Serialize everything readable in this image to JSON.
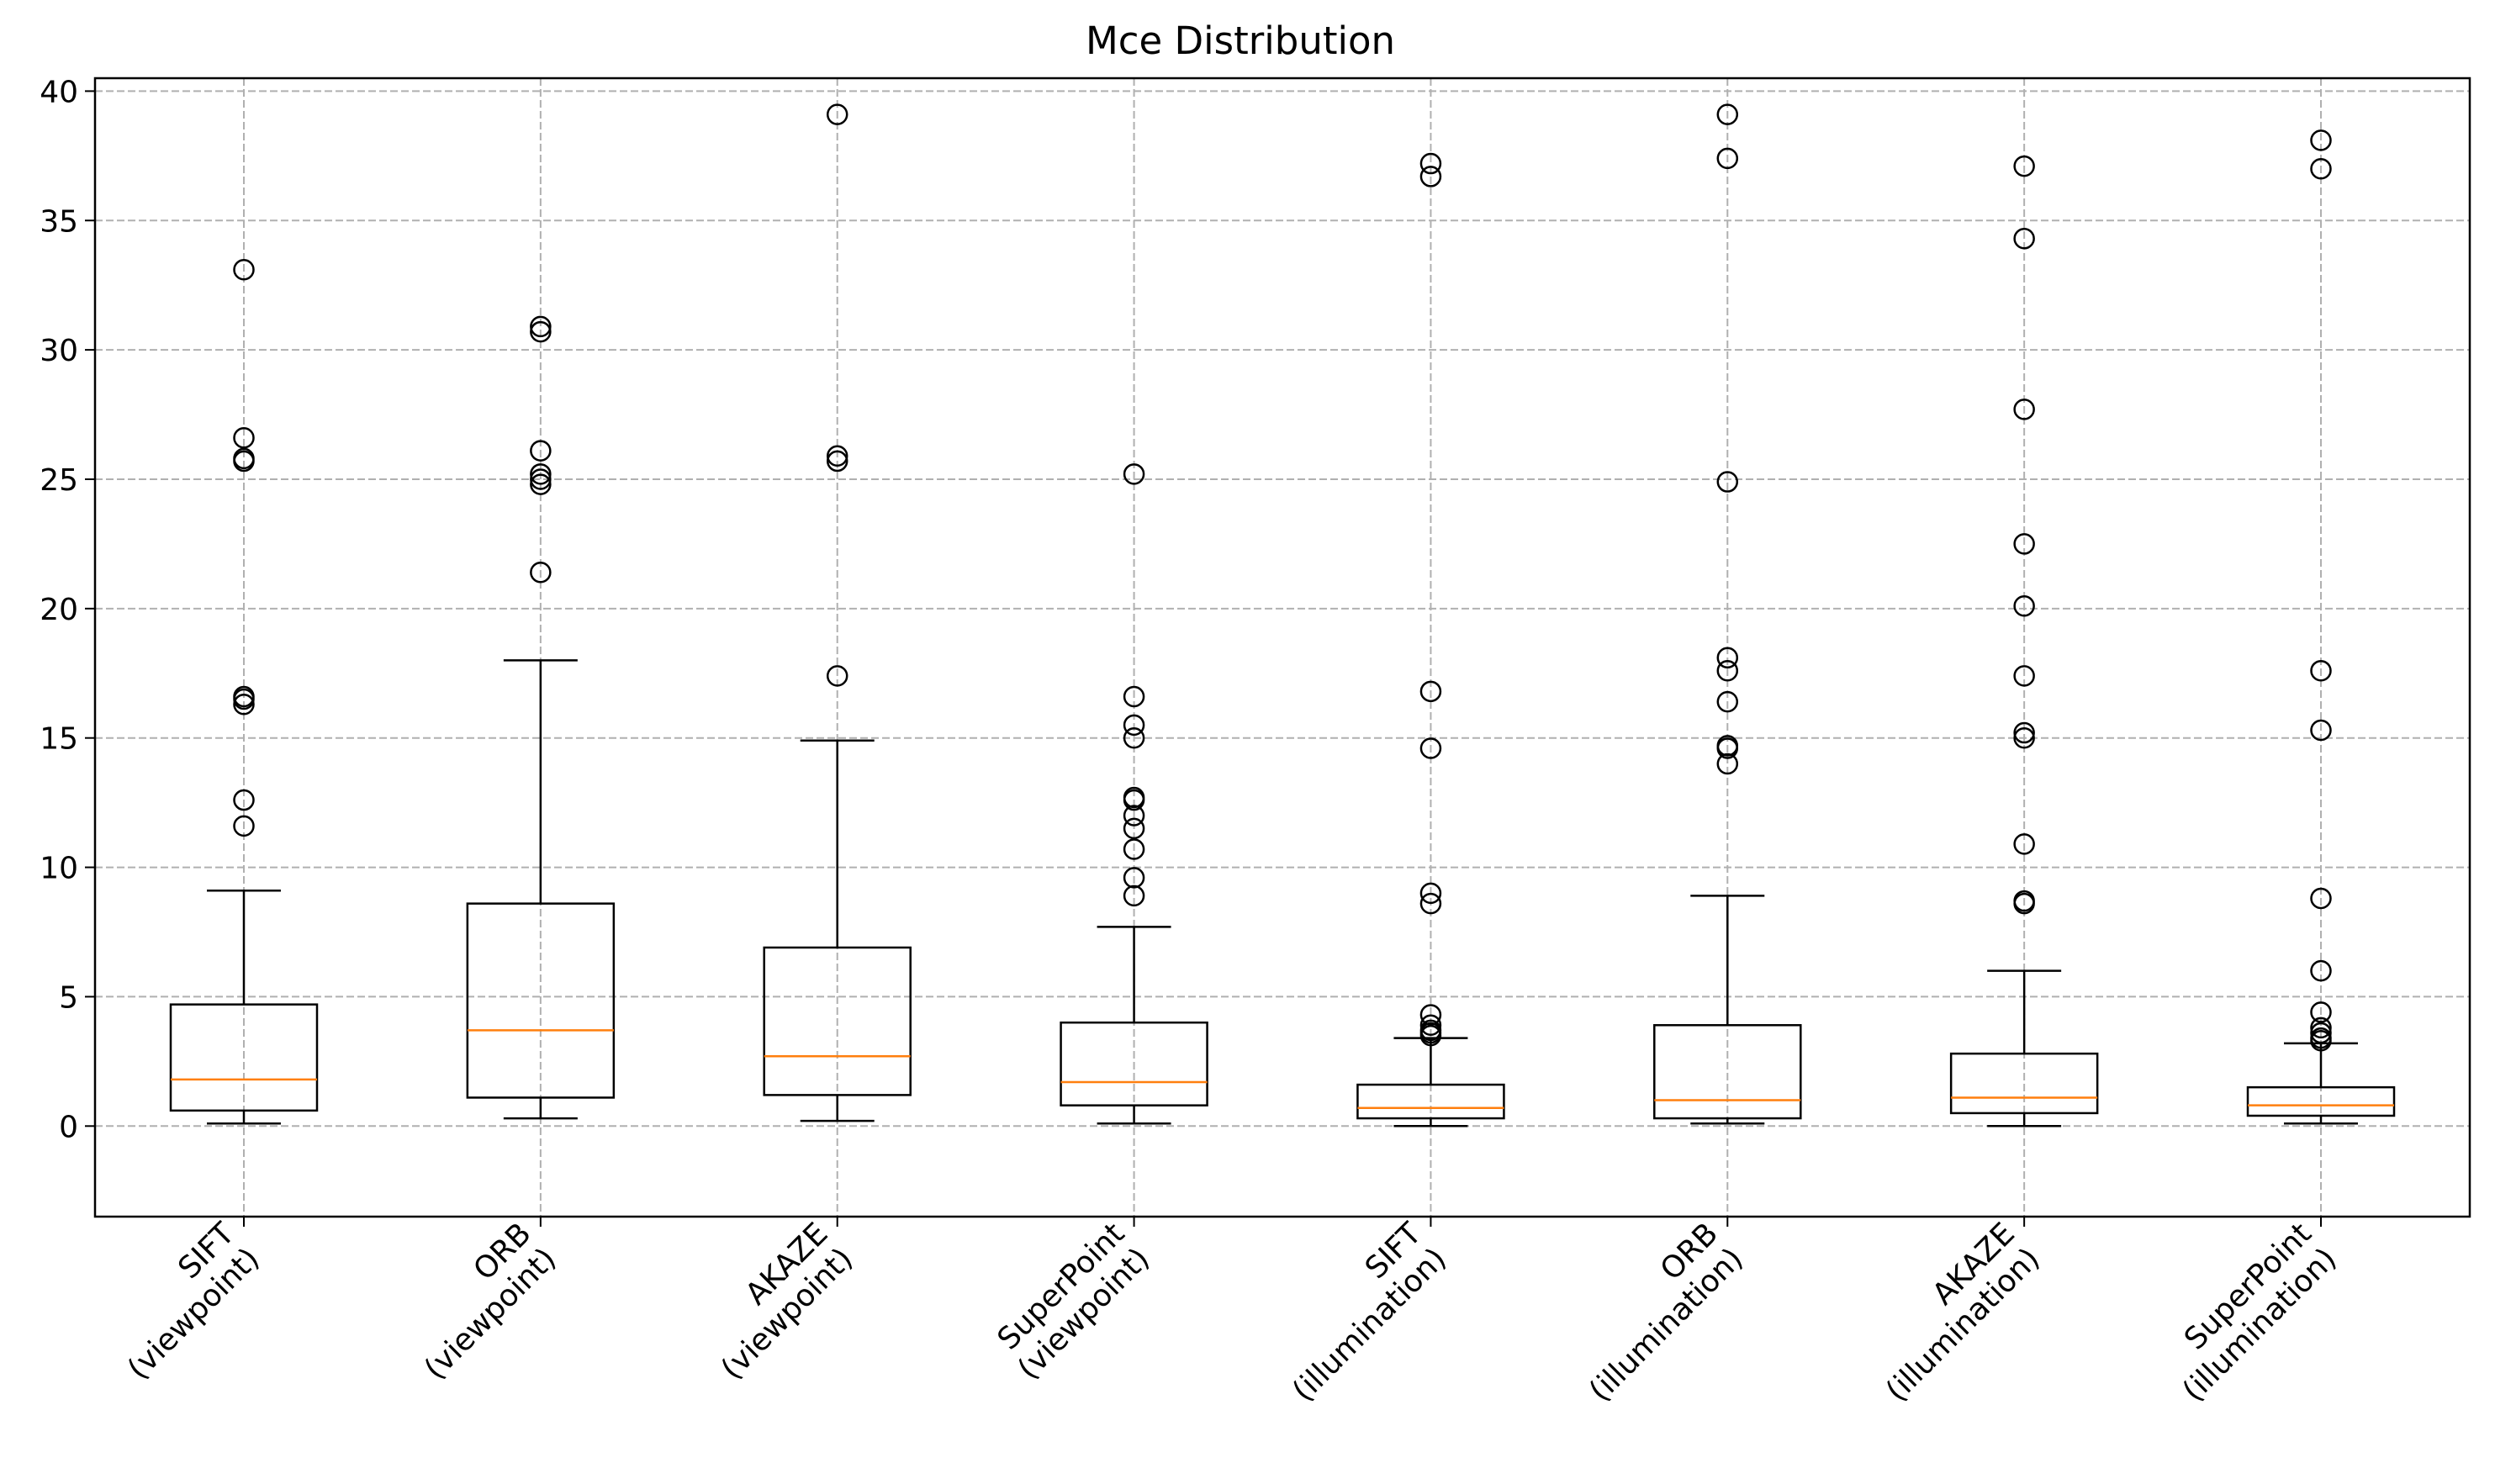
{
  "chart_data": {
    "type": "boxplot",
    "title": "Mce Distribution",
    "xlabel": "",
    "ylabel": "",
    "ylim": [
      -3.5,
      40.5
    ],
    "yticks": [
      0,
      5,
      10,
      15,
      20,
      25,
      30,
      35,
      40
    ],
    "grid": true,
    "categories": [
      [
        "SIFT",
        "(viewpoint)"
      ],
      [
        "ORB",
        "(viewpoint)"
      ],
      [
        "AKAZE",
        "(viewpoint)"
      ],
      [
        "SuperPoint",
        "(viewpoint)"
      ],
      [
        "SIFT",
        "(illumination)"
      ],
      [
        "ORB",
        "(illumination)"
      ],
      [
        "AKAZE",
        "(illumination)"
      ],
      [
        "SuperPoint",
        "(illumination)"
      ]
    ],
    "boxes": [
      {
        "whisker_low": 0.1,
        "q1": 0.6,
        "median": 1.8,
        "q3": 4.7,
        "whisker_high": 9.1,
        "outliers": [
          11.6,
          12.6,
          16.3,
          16.5,
          16.6,
          25.7,
          25.8,
          26.6,
          33.1
        ]
      },
      {
        "whisker_low": 0.3,
        "q1": 1.1,
        "median": 3.7,
        "q3": 8.6,
        "whisker_high": 18.0,
        "outliers": [
          21.4,
          24.8,
          25.0,
          25.2,
          26.1,
          30.7,
          30.9
        ]
      },
      {
        "whisker_low": 0.2,
        "q1": 1.2,
        "median": 2.7,
        "q3": 6.9,
        "whisker_high": 14.9,
        "outliers": [
          17.4,
          25.7,
          25.9,
          39.1
        ]
      },
      {
        "whisker_low": 0.1,
        "q1": 0.8,
        "median": 1.7,
        "q3": 4.0,
        "whisker_high": 7.7,
        "outliers": [
          8.9,
          9.6,
          10.7,
          11.5,
          12.0,
          12.6,
          12.7,
          15.0,
          15.5,
          16.6,
          25.2
        ]
      },
      {
        "whisker_low": 0.0,
        "q1": 0.3,
        "median": 0.7,
        "q3": 1.6,
        "whisker_high": 3.4,
        "outliers": [
          3.5,
          3.6,
          3.7,
          3.9,
          4.3,
          8.6,
          9.0,
          14.6,
          16.8,
          36.7,
          37.2
        ]
      },
      {
        "whisker_low": 0.1,
        "q1": 0.3,
        "median": 1.0,
        "q3": 3.9,
        "whisker_high": 8.9,
        "outliers": [
          14.0,
          14.6,
          14.7,
          16.4,
          17.6,
          18.1,
          24.9,
          37.4,
          39.1
        ]
      },
      {
        "whisker_low": 0.0,
        "q1": 0.5,
        "median": 1.1,
        "q3": 2.8,
        "whisker_high": 6.0,
        "outliers": [
          8.6,
          8.7,
          10.9,
          15.0,
          15.2,
          17.4,
          20.1,
          22.5,
          27.7,
          34.3,
          37.1
        ]
      },
      {
        "whisker_low": 0.1,
        "q1": 0.4,
        "median": 0.8,
        "q3": 1.5,
        "whisker_high": 3.2,
        "outliers": [
          3.3,
          3.4,
          3.6,
          3.8,
          4.4,
          6.0,
          8.8,
          15.3,
          17.6,
          37.0,
          38.1
        ]
      }
    ],
    "colors": {
      "box": "#000000",
      "median": "#ff7f0e",
      "grid": "#b0b0b0",
      "background": "#ffffff"
    }
  }
}
